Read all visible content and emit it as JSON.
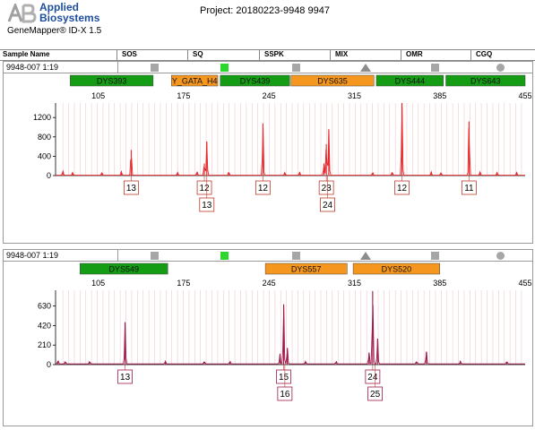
{
  "header": {
    "brand_line1": "Applied",
    "brand_line2": "Biosystems",
    "app_name": "GeneMapper® ID-X  1.5",
    "project": "Project: 20180223-9948 9947"
  },
  "column_header": {
    "sample_name": "Sample Name",
    "cols": [
      "SOS",
      "SQ",
      "SSPK",
      "MIX",
      "OMR",
      "CGQ"
    ]
  },
  "panels": [
    {
      "sample": "9948-007  1:19",
      "qc_icons": [
        "square",
        "green-square",
        "square",
        "triangle",
        "square",
        "circle"
      ],
      "markers": [
        {
          "name": "DYS393",
          "color": "#149c14",
          "start": 82,
          "end": 150
        },
        {
          "name": "Y_GATA_H4",
          "color": "#f5961e",
          "start": 165,
          "end": 203
        },
        {
          "name": "DYS439",
          "color": "#149c14",
          "start": 205,
          "end": 262
        },
        {
          "name": "DYS635",
          "color": "#f5961e",
          "start": 263,
          "end": 331
        },
        {
          "name": "DYS444",
          "color": "#149c14",
          "start": 333,
          "end": 388
        },
        {
          "name": "DYS643",
          "color": "#149c14",
          "start": 390,
          "end": 455
        }
      ],
      "allele_labels": [
        {
          "text": "13",
          "x": 132,
          "row": 0
        },
        {
          "text": "12",
          "x": 192,
          "row": 0
        },
        {
          "text": "13",
          "x": 194,
          "row": 1
        },
        {
          "text": "12",
          "x": 240,
          "row": 0
        },
        {
          "text": "23",
          "x": 292,
          "row": 0
        },
        {
          "text": "24",
          "x": 293,
          "row": 1
        },
        {
          "text": "12",
          "x": 354,
          "row": 0
        },
        {
          "text": "11",
          "x": 409,
          "row": 0
        }
      ]
    },
    {
      "sample": "9948-007  1:19",
      "qc_icons": [
        "square",
        "green-square",
        "square",
        "triangle",
        "square",
        "circle"
      ],
      "markers": [
        {
          "name": "DYS549",
          "color": "#149c14",
          "start": 90,
          "end": 162
        },
        {
          "name": "DYS557",
          "color": "#f5961e",
          "start": 242,
          "end": 309
        },
        {
          "name": "DYS520",
          "color": "#f5961e",
          "start": 314,
          "end": 385
        }
      ],
      "allele_labels": [
        {
          "text": "13",
          "x": 127,
          "row": 0
        },
        {
          "text": "15",
          "x": 257,
          "row": 0
        },
        {
          "text": "16",
          "x": 258,
          "row": 1
        },
        {
          "text": "24",
          "x": 330,
          "row": 0
        },
        {
          "text": "25",
          "x": 332,
          "row": 1
        }
      ]
    }
  ],
  "chart_data": [
    {
      "type": "line",
      "xlim": [
        70,
        455
      ],
      "ylim": [
        0,
        1500
      ],
      "x_ticks": [
        105,
        175,
        245,
        315,
        385,
        455
      ],
      "y_ticks": [
        0,
        400,
        800,
        1200
      ],
      "grid": false,
      "series": [
        {
          "color": "#e8282b",
          "peaks": [
            {
              "x": 76,
              "y": 90
            },
            {
              "x": 84,
              "y": 60
            },
            {
              "x": 108,
              "y": 60
            },
            {
              "x": 124,
              "y": 80
            },
            {
              "x": 132,
              "y": 530
            },
            {
              "x": 170,
              "y": 60
            },
            {
              "x": 186,
              "y": 80
            },
            {
              "x": 192,
              "y": 250
            },
            {
              "x": 194,
              "y": 700
            },
            {
              "x": 212,
              "y": 70
            },
            {
              "x": 240,
              "y": 1080
            },
            {
              "x": 258,
              "y": 60
            },
            {
              "x": 270,
              "y": 70
            },
            {
              "x": 290,
              "y": 250
            },
            {
              "x": 292,
              "y": 650
            },
            {
              "x": 294,
              "y": 960
            },
            {
              "x": 330,
              "y": 60
            },
            {
              "x": 346,
              "y": 70
            },
            {
              "x": 354,
              "y": 1500
            },
            {
              "x": 378,
              "y": 70
            },
            {
              "x": 386,
              "y": 60
            },
            {
              "x": 409,
              "y": 1120
            },
            {
              "x": 418,
              "y": 70
            },
            {
              "x": 432,
              "y": 60
            },
            {
              "x": 448,
              "y": 60
            }
          ]
        }
      ]
    },
    {
      "type": "line",
      "xlim": [
        70,
        455
      ],
      "ylim": [
        0,
        800
      ],
      "x_ticks": [
        105,
        175,
        245,
        315,
        385,
        455
      ],
      "y_ticks": [
        0,
        210,
        420,
        630
      ],
      "grid": false,
      "series": [
        {
          "color": "#a01a4d",
          "peaks": [
            {
              "x": 72,
              "y": 40
            },
            {
              "x": 78,
              "y": 30
            },
            {
              "x": 98,
              "y": 30
            },
            {
              "x": 127,
              "y": 450
            },
            {
              "x": 160,
              "y": 30
            },
            {
              "x": 192,
              "y": 30
            },
            {
              "x": 213,
              "y": 30
            },
            {
              "x": 254,
              "y": 110
            },
            {
              "x": 257,
              "y": 650
            },
            {
              "x": 260,
              "y": 180
            },
            {
              "x": 275,
              "y": 30
            },
            {
              "x": 300,
              "y": 30
            },
            {
              "x": 327,
              "y": 130
            },
            {
              "x": 330,
              "y": 790
            },
            {
              "x": 334,
              "y": 280
            },
            {
              "x": 366,
              "y": 30
            },
            {
              "x": 374,
              "y": 140
            },
            {
              "x": 402,
              "y": 30
            },
            {
              "x": 440,
              "y": 30
            }
          ]
        }
      ]
    }
  ]
}
